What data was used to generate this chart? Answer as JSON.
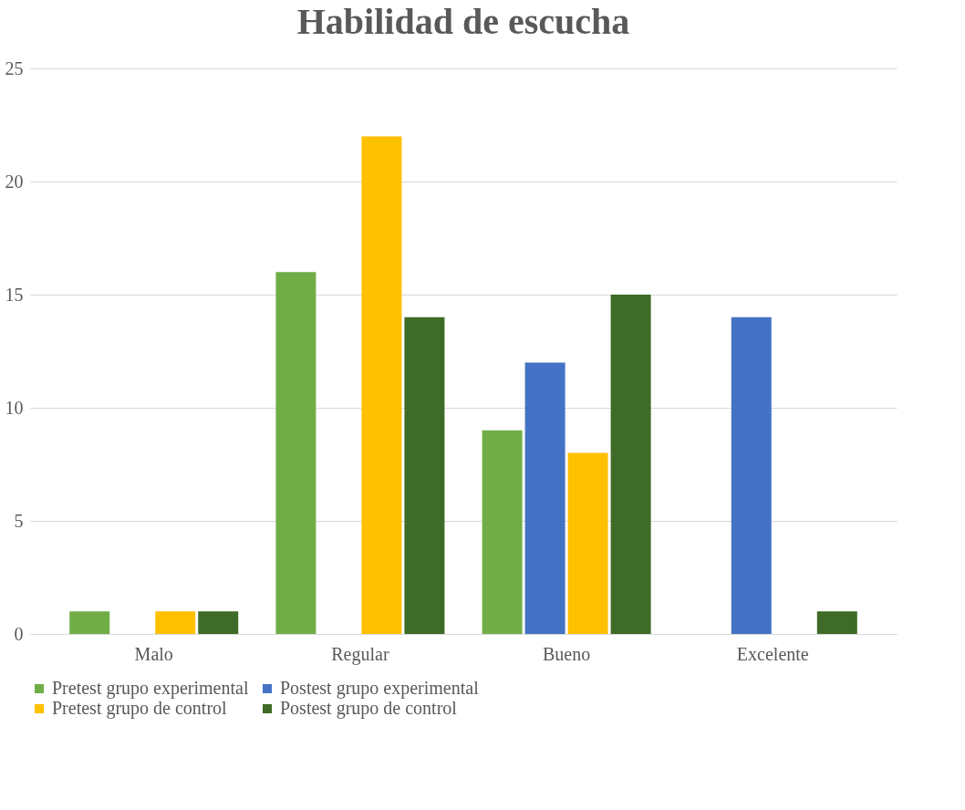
{
  "chart_data": {
    "type": "bar",
    "title": "Habilidad de escucha",
    "categories": [
      "Malo",
      "Regular",
      "Bueno",
      "Excelente"
    ],
    "series": [
      {
        "name": "Pretest grupo experimental",
        "color": "#70ad47",
        "values": [
          1,
          16,
          9,
          0
        ]
      },
      {
        "name": "Postest grupo experimental",
        "color": "#4472c4",
        "values": [
          0,
          0,
          12,
          14
        ]
      },
      {
        "name": "Pretest grupo de control",
        "color": "#ffc000",
        "values": [
          1,
          22,
          8,
          0
        ]
      },
      {
        "name": "Postest grupo de control",
        "color": "#3e6b27",
        "values": [
          1,
          14,
          15,
          1
        ]
      }
    ],
    "ylim": [
      0,
      25
    ],
    "yticks": [
      0,
      5,
      10,
      15,
      20,
      25
    ],
    "grid": "y",
    "legend": "bottom"
  }
}
